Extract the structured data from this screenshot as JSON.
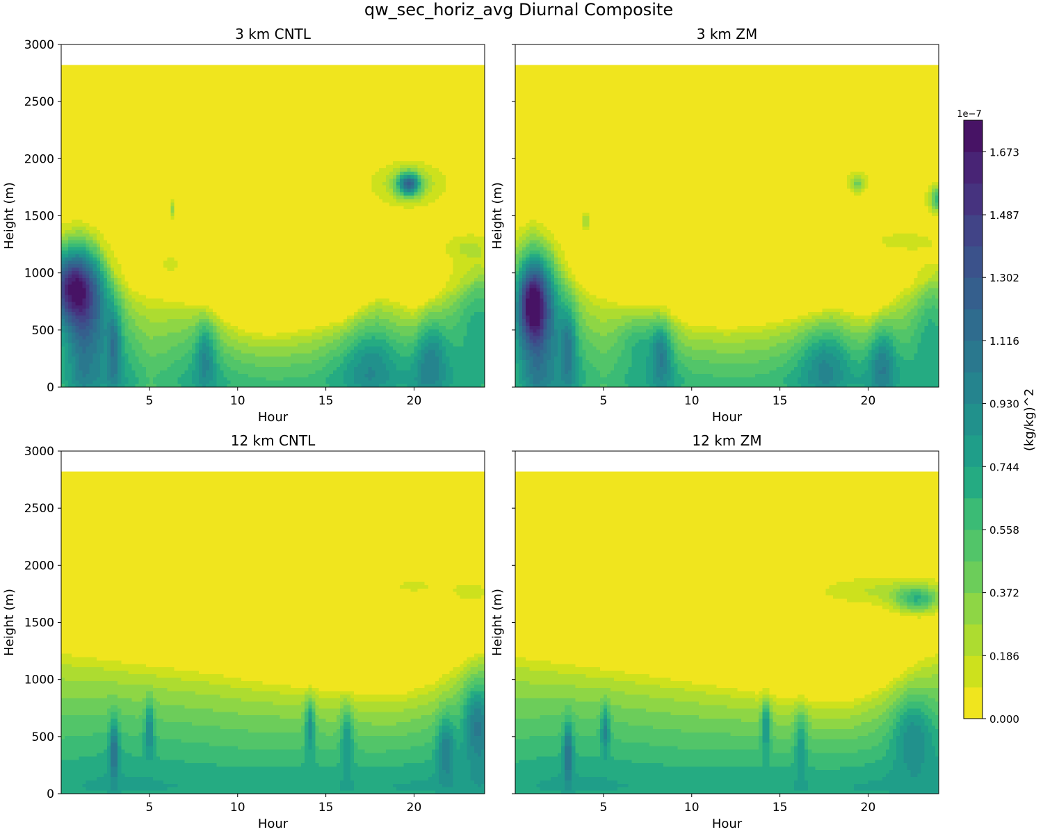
{
  "figure": {
    "suptitle": "qw_sec_horiz_avg Diurnal Composite"
  },
  "colorbar": {
    "label": "(kg/kg)^2",
    "scale_label": "1e−7",
    "tick_labels": [
      "0.000",
      "0.186",
      "0.372",
      "0.558",
      "0.744",
      "0.930",
      "1.116",
      "1.302",
      "1.487",
      "1.673"
    ],
    "levels_1e7": [
      0.0,
      0.093,
      0.186,
      0.279,
      0.372,
      0.465,
      0.558,
      0.651,
      0.744,
      0.837,
      0.93,
      1.023,
      1.116,
      1.209,
      1.302,
      1.395,
      1.487,
      1.58,
      1.673,
      1.766
    ],
    "colors": [
      "#f0e51e",
      "#cde11d",
      "#addc30",
      "#8ed645",
      "#6ccd5a",
      "#52c569",
      "#3bbb75",
      "#25ab82",
      "#1f9e89",
      "#21918c",
      "#25848e",
      "#2a788e",
      "#2f6c8e",
      "#355f8d",
      "#3b528b",
      "#414487",
      "#46337f",
      "#482475",
      "#471365"
    ]
  },
  "chart_data": [
    {
      "type": "contourf",
      "title": "3 km CNTL",
      "xlabel": "Hour",
      "ylabel": "Height (m)",
      "xlim": [
        0,
        24
      ],
      "ylim": [
        0,
        3000
      ],
      "xticks": [
        5,
        10,
        15,
        20
      ],
      "yticks": [
        0,
        500,
        1000,
        1500,
        2000,
        2500,
        3000
      ],
      "data_top": 2820,
      "surface": [
        [
          0,
          0.6
        ],
        [
          1.2,
          0.95
        ],
        [
          2.5,
          0.8
        ],
        [
          3,
          0.85
        ],
        [
          4,
          0.7
        ],
        [
          5,
          0.55
        ],
        [
          6,
          0.6
        ],
        [
          7,
          0.7
        ],
        [
          8,
          0.8
        ],
        [
          9,
          0.72
        ],
        [
          10,
          0.62
        ],
        [
          12,
          0.58
        ],
        [
          14,
          0.6
        ],
        [
          16,
          0.7
        ],
        [
          17.5,
          0.78
        ],
        [
          19,
          0.7
        ],
        [
          20.5,
          0.8
        ],
        [
          22,
          0.72
        ],
        [
          24,
          0.65
        ]
      ],
      "pbl_height": [
        [
          0,
          1350
        ],
        [
          1,
          1450
        ],
        [
          2,
          1350
        ],
        [
          3,
          1000
        ],
        [
          4,
          850
        ],
        [
          5,
          800
        ],
        [
          6,
          780
        ],
        [
          8,
          720
        ],
        [
          9,
          620
        ],
        [
          10,
          530
        ],
        [
          11,
          480
        ],
        [
          12,
          470
        ],
        [
          14,
          520
        ],
        [
          16,
          590
        ],
        [
          17,
          700
        ],
        [
          18,
          800
        ],
        [
          19,
          760
        ],
        [
          20,
          680
        ],
        [
          21,
          780
        ],
        [
          22,
          860
        ],
        [
          23,
          900
        ],
        [
          24,
          1050
        ]
      ],
      "features": [
        {
          "x": 0.55,
          "y": 900,
          "amp": 1.05,
          "sx": 1.0,
          "sy": 220
        },
        {
          "x": 1.5,
          "y": 650,
          "amp": 0.45,
          "sx": 1.1,
          "sy": 320
        },
        {
          "x": 3.0,
          "y": 380,
          "amp": 0.35,
          "sx": 0.25,
          "sy": 230
        },
        {
          "x": 8.2,
          "y": 330,
          "amp": 0.35,
          "sx": 0.4,
          "sy": 200
        },
        {
          "x": 17.5,
          "y": 250,
          "amp": 0.25,
          "sx": 1.2,
          "sy": 220
        },
        {
          "x": 21,
          "y": 280,
          "amp": 0.35,
          "sx": 0.6,
          "sy": 230
        },
        {
          "x": 23.5,
          "y": 700,
          "amp": 0.3,
          "sx": 1.0,
          "sy": 300
        },
        {
          "x": 19.7,
          "y": 1780,
          "amp": 0.95,
          "sx": 0.45,
          "sy": 70
        },
        {
          "x": 19.7,
          "y": 1780,
          "amp": 0.3,
          "sx": 1.4,
          "sy": 130
        },
        {
          "x": 6.3,
          "y": 1560,
          "amp": 0.35,
          "sx": 0.1,
          "sy": 60
        },
        {
          "x": 23,
          "y": 1230,
          "amp": 0.15,
          "sx": 1.0,
          "sy": 80
        },
        {
          "x": 6.2,
          "y": 1080,
          "amp": 0.12,
          "sx": 0.5,
          "sy": 60
        }
      ]
    },
    {
      "type": "contourf",
      "title": "3 km ZM",
      "xlabel": "Hour",
      "ylabel": "Height (m)",
      "xlim": [
        0,
        24
      ],
      "ylim": [
        0,
        3000
      ],
      "xticks": [
        5,
        10,
        15,
        20
      ],
      "yticks": [
        0,
        500,
        1000,
        1500,
        2000,
        2500,
        3000
      ],
      "data_top": 2820,
      "surface": [
        [
          0,
          0.6
        ],
        [
          1.2,
          0.95
        ],
        [
          2.5,
          0.8
        ],
        [
          3,
          0.85
        ],
        [
          4,
          0.65
        ],
        [
          5,
          0.55
        ],
        [
          7,
          0.72
        ],
        [
          8.3,
          0.82
        ],
        [
          10,
          0.62
        ],
        [
          12,
          0.58
        ],
        [
          14,
          0.6
        ],
        [
          16,
          0.7
        ],
        [
          17.5,
          0.78
        ],
        [
          19,
          0.7
        ],
        [
          20.8,
          0.8
        ],
        [
          22,
          0.72
        ],
        [
          24,
          0.65
        ]
      ],
      "pbl_height": [
        [
          0,
          1350
        ],
        [
          1,
          1450
        ],
        [
          2,
          1300
        ],
        [
          3,
          1000
        ],
        [
          4,
          850
        ],
        [
          6,
          740
        ],
        [
          8,
          700
        ],
        [
          10,
          560
        ],
        [
          12,
          530
        ],
        [
          14,
          560
        ],
        [
          16,
          620
        ],
        [
          18,
          700
        ],
        [
          20,
          620
        ],
        [
          21,
          720
        ],
        [
          22,
          860
        ],
        [
          23,
          900
        ],
        [
          24,
          1050
        ]
      ],
      "features": [
        {
          "x": 1.0,
          "y": 750,
          "amp": 0.95,
          "sx": 0.6,
          "sy": 230
        },
        {
          "x": 1.3,
          "y": 650,
          "amp": 0.4,
          "sx": 1.1,
          "sy": 380
        },
        {
          "x": 3.0,
          "y": 380,
          "amp": 0.35,
          "sx": 0.3,
          "sy": 220
        },
        {
          "x": 8.3,
          "y": 330,
          "amp": 0.4,
          "sx": 0.4,
          "sy": 190
        },
        {
          "x": 7.0,
          "y": 420,
          "amp": 0.2,
          "sx": 0.8,
          "sy": 150
        },
        {
          "x": 17.6,
          "y": 250,
          "amp": 0.3,
          "sx": 1.0,
          "sy": 210
        },
        {
          "x": 20.8,
          "y": 250,
          "amp": 0.35,
          "sx": 0.5,
          "sy": 210
        },
        {
          "x": 23.5,
          "y": 600,
          "amp": 0.25,
          "sx": 0.7,
          "sy": 300
        },
        {
          "x": 19.4,
          "y": 1790,
          "amp": 0.4,
          "sx": 0.35,
          "sy": 60
        },
        {
          "x": 24.0,
          "y": 1650,
          "amp": 0.6,
          "sx": 0.4,
          "sy": 80
        },
        {
          "x": 4.0,
          "y": 1450,
          "amp": 0.25,
          "sx": 0.2,
          "sy": 60
        },
        {
          "x": 22,
          "y": 1280,
          "amp": 0.15,
          "sx": 1.3,
          "sy": 60
        }
      ]
    },
    {
      "type": "contourf",
      "title": "12 km CNTL",
      "xlabel": "Hour",
      "ylabel": "Height (m)",
      "xlim": [
        0,
        24
      ],
      "ylim": [
        0,
        3000
      ],
      "xticks": [
        5,
        10,
        15,
        20
      ],
      "yticks": [
        0,
        500,
        1000,
        1500,
        2000,
        2500,
        3000
      ],
      "data_top": 2820,
      "surface": [
        [
          0,
          0.72
        ],
        [
          3,
          0.78
        ],
        [
          6,
          0.75
        ],
        [
          10,
          0.72
        ],
        [
          14,
          0.75
        ],
        [
          18,
          0.75
        ],
        [
          22,
          0.78
        ],
        [
          24,
          0.8
        ]
      ],
      "pbl_height": [
        [
          0,
          1250
        ],
        [
          3,
          1180
        ],
        [
          6,
          1120
        ],
        [
          9,
          1060
        ],
        [
          11,
          1000
        ],
        [
          13,
          960
        ],
        [
          15,
          920
        ],
        [
          17,
          880
        ],
        [
          19,
          870
        ],
        [
          21,
          980
        ],
        [
          23,
          1180
        ],
        [
          24,
          1250
        ]
      ],
      "features": [
        {
          "x": 3.0,
          "y": 400,
          "amp": 0.5,
          "sx": 0.18,
          "sy": 190
        },
        {
          "x": 5.0,
          "y": 580,
          "amp": 0.45,
          "sx": 0.18,
          "sy": 160
        },
        {
          "x": 14.1,
          "y": 620,
          "amp": 0.5,
          "sx": 0.18,
          "sy": 160
        },
        {
          "x": 16.2,
          "y": 520,
          "amp": 0.35,
          "sx": 0.25,
          "sy": 200
        },
        {
          "x": 21.8,
          "y": 420,
          "amp": 0.4,
          "sx": 0.35,
          "sy": 200
        },
        {
          "x": 23.6,
          "y": 650,
          "amp": 0.5,
          "sx": 0.6,
          "sy": 260
        },
        {
          "x": 20,
          "y": 1820,
          "amp": 0.12,
          "sx": 1.2,
          "sy": 50
        },
        {
          "x": 23.2,
          "y": 1770,
          "amp": 0.15,
          "sx": 0.8,
          "sy": 70
        }
      ]
    },
    {
      "type": "contourf",
      "title": "12 km ZM",
      "xlabel": "Hour",
      "ylabel": "Height (m)",
      "xlim": [
        0,
        24
      ],
      "ylim": [
        0,
        3000
      ],
      "xticks": [
        5,
        10,
        15,
        20
      ],
      "yticks": [
        0,
        500,
        1000,
        1500,
        2000,
        2500,
        3000
      ],
      "data_top": 2820,
      "surface": [
        [
          0,
          0.72
        ],
        [
          3,
          0.78
        ],
        [
          6,
          0.75
        ],
        [
          10,
          0.72
        ],
        [
          14,
          0.75
        ],
        [
          18,
          0.75
        ],
        [
          22,
          0.78
        ],
        [
          24,
          0.8
        ]
      ],
      "pbl_height": [
        [
          0,
          1220
        ],
        [
          3,
          1150
        ],
        [
          6,
          1090
        ],
        [
          9,
          1020
        ],
        [
          11,
          970
        ],
        [
          13,
          920
        ],
        [
          15,
          860
        ],
        [
          17,
          820
        ],
        [
          19,
          820
        ],
        [
          21,
          960
        ],
        [
          23,
          1180
        ],
        [
          24,
          1250
        ]
      ],
      "features": [
        {
          "x": 3.0,
          "y": 380,
          "amp": 0.5,
          "sx": 0.18,
          "sy": 190
        },
        {
          "x": 5.1,
          "y": 580,
          "amp": 0.45,
          "sx": 0.18,
          "sy": 150
        },
        {
          "x": 14.2,
          "y": 620,
          "amp": 0.5,
          "sx": 0.18,
          "sy": 150
        },
        {
          "x": 16.2,
          "y": 500,
          "amp": 0.3,
          "sx": 0.25,
          "sy": 200
        },
        {
          "x": 22.5,
          "y": 550,
          "amp": 0.35,
          "sx": 0.8,
          "sy": 230
        },
        {
          "x": 22.8,
          "y": 1700,
          "amp": 0.55,
          "sx": 0.9,
          "sy": 80
        },
        {
          "x": 21,
          "y": 1780,
          "amp": 0.2,
          "sx": 2.8,
          "sy": 90
        }
      ]
    }
  ]
}
